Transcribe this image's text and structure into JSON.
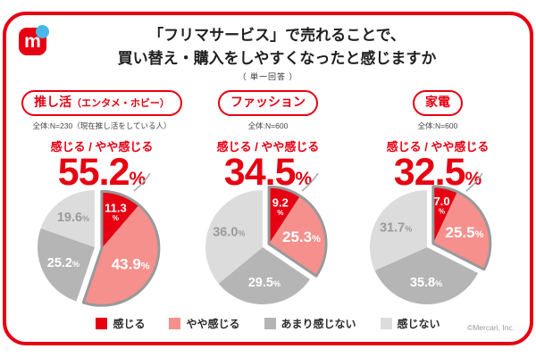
{
  "header": {
    "title_line1": "「フリマサービス」で売れることで、",
    "title_line2": "買い替え・購入をしやすくなったと感じますか",
    "subtitle": "（ 単一回答 ）",
    "logo_letter": "m"
  },
  "chart_data": {
    "type": "pie",
    "title": "「フリマサービス」で売れることで、買い替え・購入をしやすくなったと感じますか（単一回答）",
    "unit": "%",
    "legend": [
      {
        "label": "感じる",
        "color": "#e60012"
      },
      {
        "label": "やや感じる",
        "color": "#f5908d"
      },
      {
        "label": "あまり感じない",
        "color": "#b5b5b5"
      },
      {
        "label": "感じない",
        "color": "#dcdcdc"
      }
    ],
    "layout": {
      "legend_position": "bottom",
      "exploded_group": [
        "感じる",
        "やや感じる"
      ]
    },
    "pies": [
      {
        "category_main": "推し活",
        "category_sub": "（エンタメ・ホビー）",
        "sample": "全体:N=230（現在推し活をしている人）",
        "headline_label": "感じる / やや感じる",
        "headline_value": "55.2",
        "headline_unit": "%",
        "slices": [
          {
            "label": "感じる",
            "value": 11.3
          },
          {
            "label": "やや感じる",
            "value": 43.9
          },
          {
            "label": "あまり感じない",
            "value": 25.2
          },
          {
            "label": "感じない",
            "value": 19.6
          }
        ]
      },
      {
        "category_main": "ファッション",
        "category_sub": "",
        "sample": "全体:N=600",
        "headline_label": "感じる / やや感じる",
        "headline_value": "34.5",
        "headline_unit": "%",
        "slices": [
          {
            "label": "感じる",
            "value": 9.2
          },
          {
            "label": "やや感じる",
            "value": 25.3
          },
          {
            "label": "あまり感じない",
            "value": 29.5
          },
          {
            "label": "感じない",
            "value": 36.0
          }
        ]
      },
      {
        "category_main": "家電",
        "category_sub": "",
        "sample": "全体:N=600",
        "headline_label": "感じる / やや感じる",
        "headline_value": "32.5",
        "headline_unit": "%",
        "slices": [
          {
            "label": "感じる",
            "value": 7.0
          },
          {
            "label": "やや感じる",
            "value": 25.5
          },
          {
            "label": "あまり感じない",
            "value": 35.8
          },
          {
            "label": "感じない",
            "value": 31.7
          }
        ]
      }
    ]
  },
  "footer": {
    "copyright": "©Mercari, Inc."
  }
}
